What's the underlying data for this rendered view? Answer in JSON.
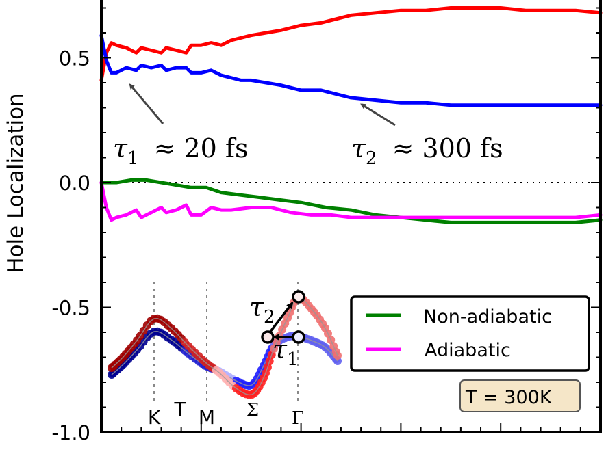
{
  "chart_data": {
    "type": "line",
    "title": "",
    "xlabel": "",
    "ylabel": "Hole Localization",
    "xlim": [
      0,
      1
    ],
    "ylim": [
      -1.0,
      0.73
    ],
    "yticks": [
      0.5,
      0.0,
      -0.5,
      -1.0
    ],
    "ytick_labels": [
      "0.5",
      "0.0",
      "-0.5",
      "-1.0"
    ],
    "y_minor_step": 0.1,
    "x_major_ticks": [
      0,
      0.2,
      0.4,
      0.6,
      0.8,
      1.0
    ],
    "x_minor_step": 0.04,
    "zero_line": {
      "y": 0.0,
      "style": "dotted"
    },
    "series": [
      {
        "name": "Valley population (red)",
        "color": "#ff0000",
        "in_legend": false,
        "x": [
          0,
          0.01,
          0.02,
          0.03,
          0.05,
          0.07,
          0.08,
          0.1,
          0.12,
          0.13,
          0.15,
          0.17,
          0.18,
          0.2,
          0.22,
          0.24,
          0.26,
          0.28,
          0.3,
          0.33,
          0.36,
          0.4,
          0.44,
          0.48,
          0.5,
          0.55,
          0.6,
          0.65,
          0.7,
          0.75,
          0.8,
          0.85,
          0.9,
          0.95,
          1.0
        ],
        "y": [
          0.41,
          0.52,
          0.56,
          0.55,
          0.54,
          0.52,
          0.54,
          0.53,
          0.52,
          0.54,
          0.53,
          0.52,
          0.55,
          0.55,
          0.56,
          0.55,
          0.57,
          0.58,
          0.59,
          0.6,
          0.61,
          0.63,
          0.64,
          0.66,
          0.67,
          0.68,
          0.69,
          0.69,
          0.7,
          0.7,
          0.7,
          0.69,
          0.69,
          0.69,
          0.68
        ]
      },
      {
        "name": "Valley population (blue)",
        "color": "#0000ff",
        "in_legend": false,
        "x": [
          0,
          0.01,
          0.02,
          0.03,
          0.05,
          0.07,
          0.08,
          0.1,
          0.12,
          0.13,
          0.15,
          0.17,
          0.18,
          0.2,
          0.22,
          0.24,
          0.26,
          0.28,
          0.3,
          0.33,
          0.36,
          0.4,
          0.44,
          0.48,
          0.5,
          0.55,
          0.6,
          0.65,
          0.7,
          0.75,
          0.8,
          0.85,
          0.9,
          0.95,
          1.0
        ],
        "y": [
          0.59,
          0.49,
          0.44,
          0.44,
          0.46,
          0.45,
          0.47,
          0.46,
          0.47,
          0.45,
          0.46,
          0.46,
          0.44,
          0.44,
          0.45,
          0.43,
          0.42,
          0.41,
          0.41,
          0.4,
          0.39,
          0.37,
          0.37,
          0.35,
          0.34,
          0.33,
          0.32,
          0.32,
          0.31,
          0.31,
          0.31,
          0.31,
          0.31,
          0.31,
          0.31
        ]
      },
      {
        "name": "Non-adiabatic",
        "color": "#008000",
        "in_legend": true,
        "x": [
          0,
          0.03,
          0.06,
          0.09,
          0.12,
          0.15,
          0.18,
          0.21,
          0.24,
          0.28,
          0.32,
          0.36,
          0.4,
          0.45,
          0.5,
          0.55,
          0.6,
          0.65,
          0.7,
          0.75,
          0.8,
          0.85,
          0.9,
          0.95,
          1.0
        ],
        "y": [
          0.0,
          0.0,
          0.01,
          0.01,
          0.0,
          -0.01,
          -0.02,
          -0.02,
          -0.04,
          -0.05,
          -0.06,
          -0.07,
          -0.08,
          -0.1,
          -0.11,
          -0.13,
          -0.14,
          -0.15,
          -0.16,
          -0.16,
          -0.16,
          -0.16,
          -0.16,
          -0.16,
          -0.15
        ]
      },
      {
        "name": "Adiabatic",
        "color": "#ff00ff",
        "in_legend": true,
        "x": [
          0,
          0.01,
          0.02,
          0.03,
          0.05,
          0.07,
          0.08,
          0.1,
          0.12,
          0.13,
          0.15,
          0.17,
          0.18,
          0.2,
          0.22,
          0.24,
          0.26,
          0.3,
          0.34,
          0.38,
          0.42,
          0.46,
          0.5,
          0.55,
          0.6,
          0.65,
          0.7,
          0.75,
          0.8,
          0.85,
          0.9,
          0.95,
          1.0
        ],
        "y": [
          0.0,
          -0.1,
          -0.15,
          -0.14,
          -0.13,
          -0.11,
          -0.14,
          -0.12,
          -0.1,
          -0.12,
          -0.11,
          -0.09,
          -0.13,
          -0.13,
          -0.1,
          -0.11,
          -0.11,
          -0.1,
          -0.1,
          -0.12,
          -0.13,
          -0.13,
          -0.14,
          -0.14,
          -0.14,
          -0.14,
          -0.14,
          -0.14,
          -0.14,
          -0.14,
          -0.14,
          -0.14,
          -0.13
        ]
      }
    ],
    "legend": {
      "placement": "lower-right",
      "entries": [
        {
          "label": "Non-adiabatic",
          "color": "#008000"
        },
        {
          "label": "Adiabatic",
          "color": "#ff00ff"
        }
      ]
    },
    "annotations": [
      {
        "text_symbol": "τ",
        "text_sub": "1",
        "text_rest": "≈ 20 fs",
        "points_to": {
          "x": 0.03,
          "y": 0.42
        }
      },
      {
        "text_symbol": "τ",
        "text_sub": "2",
        "text_rest": "≈ 300 fs",
        "points_to": {
          "x": 0.51,
          "y": 0.33
        }
      }
    ],
    "text_box": {
      "text": "T = 300K",
      "facecolor": "#f5e6c8",
      "placement": "lower-right"
    },
    "inset": {
      "description": "Band structure sketch along K–T–M–Σ–Γ path with two bands (red and blue) and transitions",
      "k_labels": [
        "K",
        "T",
        "M",
        "Σ",
        "Γ"
      ],
      "bands": [
        {
          "name": "upper band",
          "colors": [
            "#8b0000",
            "#ff0000",
            "#ffffff",
            "#ff8080"
          ]
        },
        {
          "name": "lower band",
          "colors": [
            "#00008b",
            "#0000ff",
            "#ffffff",
            "#8080ff"
          ]
        }
      ],
      "transition_labels": [
        {
          "symbol": "τ",
          "sub": "1"
        },
        {
          "symbol": "τ",
          "sub": "2"
        }
      ]
    }
  }
}
